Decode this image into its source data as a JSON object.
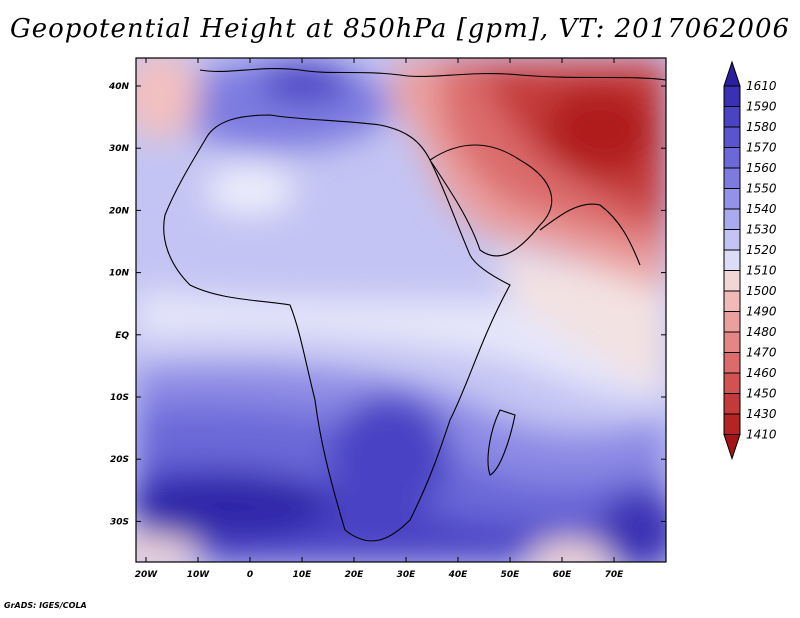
{
  "title": "Geopotential Height at 850hPa [gpm], VT: 2017062006",
  "credit": "GrADS: IGES/COLA",
  "map": {
    "lon_labels": [
      "20W",
      "10W",
      "0",
      "10E",
      "20E",
      "30E",
      "40E",
      "50E",
      "60E",
      "70E"
    ],
    "lat_labels": [
      "40N",
      "30N",
      "20N",
      "10N",
      "EQ",
      "10S",
      "20S",
      "30S"
    ]
  },
  "colorbar": {
    "levels": [
      "1610",
      "1590",
      "1580",
      "1570",
      "1560",
      "1550",
      "1540",
      "1530",
      "1520",
      "1510",
      "1500",
      "1490",
      "1480",
      "1470",
      "1460",
      "1450",
      "1430",
      "1410"
    ],
    "colors": [
      "#2a1f9e",
      "#3a30b3",
      "#4a43c4",
      "#5a55cf",
      "#6b68d8",
      "#7d7be0",
      "#9392e8",
      "#aaabee",
      "#c3c4f3",
      "#dcdcf8",
      "#f2d6d6",
      "#f2b9b9",
      "#eba0a0",
      "#e48686",
      "#dc6c6c",
      "#d25252",
      "#c43a3a",
      "#b52424",
      "#a61515"
    ]
  }
}
